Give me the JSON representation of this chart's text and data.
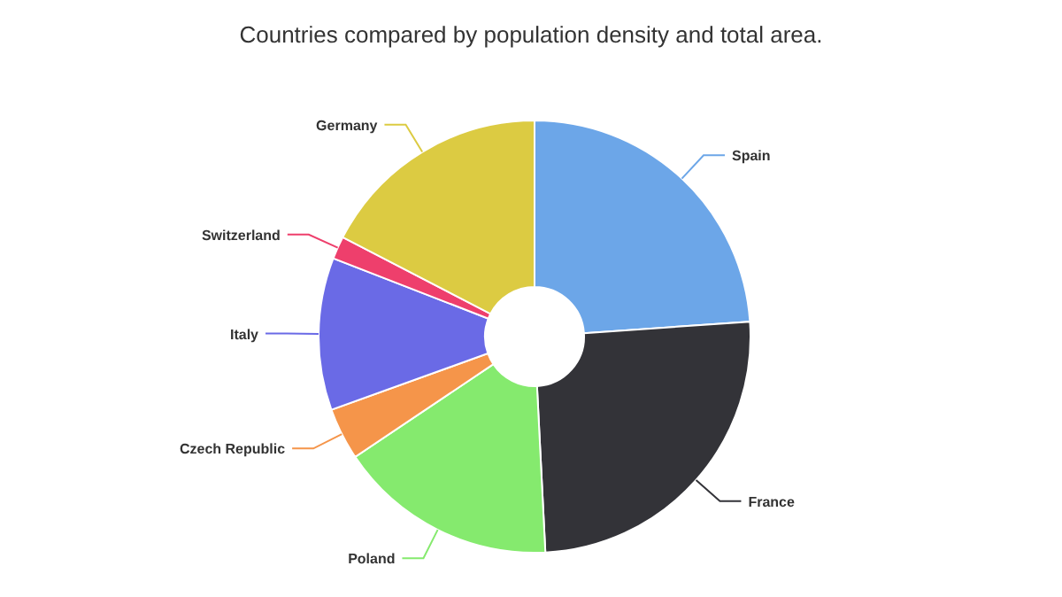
{
  "chart_data": {
    "type": "donut",
    "title": "Countries compared by population density and total area.",
    "categories": [
      "Spain",
      "France",
      "Poland",
      "Czech Republic",
      "Italy",
      "Switzerland",
      "Germany"
    ],
    "values": [
      23.9,
      25.3,
      16.4,
      3.9,
      11.4,
      1.7,
      17.4
    ],
    "colors": [
      "#6ca6e8",
      "#333338",
      "#85ea6e",
      "#f5954a",
      "#6a6ae6",
      "#ee3f6c",
      "#dccb42"
    ]
  }
}
